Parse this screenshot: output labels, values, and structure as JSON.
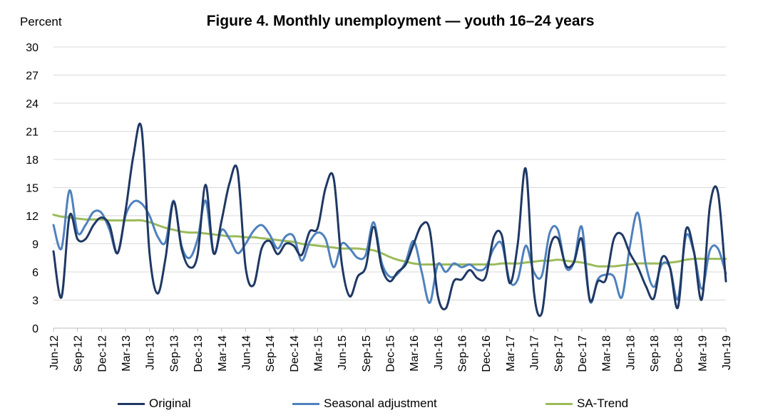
{
  "chart_data": {
    "type": "line",
    "title": "Figure 4. Monthly unemployment  — youth 16–24 years",
    "ylabel": "Percent",
    "ylim": [
      0,
      30
    ],
    "yticks": [
      0,
      3,
      6,
      9,
      12,
      15,
      18,
      21,
      24,
      27,
      30
    ],
    "grid": true,
    "legend_position": "bottom",
    "x_labels": [
      "Jun-12",
      "Sep-12",
      "Dec-12",
      "Mar-13",
      "Jun-13",
      "Sep-13",
      "Dec-13",
      "Mar-14",
      "Jun-14",
      "Sep-14",
      "Dec-14",
      "Mar-15",
      "Jun-15",
      "Sep-15",
      "Dec-15",
      "Mar-16",
      "Jun-16",
      "Sep-16",
      "Dec-16",
      "Mar-17",
      "Jun-17",
      "Sep-17",
      "Dec-17",
      "Mar-18",
      "Jun-18",
      "Sep-18",
      "Dec-18",
      "Mar-19",
      "Jun-19"
    ],
    "series": [
      {
        "name": "Original",
        "color": "#1f3864",
        "values": [
          8.2,
          3.3,
          12.0,
          9.5,
          9.5,
          11.0,
          11.8,
          11.0,
          8.0,
          12.5,
          18.5,
          21.3,
          8.0,
          3.7,
          7.5,
          13.5,
          8.5,
          6.5,
          7.8,
          15.3,
          8.0,
          11.5,
          15.5,
          16.8,
          6.5,
          4.6,
          8.5,
          9.3,
          7.9,
          9.0,
          8.8,
          7.8,
          10.3,
          10.7,
          15.0,
          16.0,
          7.0,
          3.4,
          5.5,
          6.5,
          10.8,
          6.5,
          5.0,
          6.0,
          6.8,
          9.0,
          11.0,
          10.5,
          3.5,
          2.1,
          5.0,
          5.2,
          6.2,
          5.3,
          5.5,
          9.7,
          9.9,
          4.8,
          9.0,
          17.0,
          4.0,
          1.6,
          8.5,
          9.6,
          6.7,
          7.0,
          9.5,
          3.0,
          5.0,
          5.2,
          9.5,
          10.0,
          8.0,
          6.5,
          4.5,
          3.2,
          7.5,
          6.5,
          2.2,
          10.5,
          8.2,
          3.1,
          13.0,
          14.5,
          5.0
        ]
      },
      {
        "name": "Seasonal adjustment",
        "color": "#4f81bd",
        "values": [
          11.0,
          8.5,
          14.7,
          10.2,
          11.0,
          12.4,
          12.3,
          10.5,
          8.0,
          12.0,
          13.5,
          13.3,
          12.0,
          9.8,
          9.2,
          13.6,
          8.8,
          7.5,
          9.5,
          13.6,
          8.0,
          10.5,
          9.5,
          8.0,
          9.0,
          10.4,
          11.0,
          10.0,
          8.5,
          9.8,
          9.8,
          7.2,
          9.2,
          10.2,
          9.5,
          6.5,
          9.0,
          8.5,
          7.5,
          7.8,
          11.3,
          7.0,
          5.5,
          5.8,
          7.1,
          9.3,
          6.0,
          2.7,
          6.8,
          6.0,
          6.9,
          6.5,
          6.8,
          6.2,
          6.5,
          8.5,
          9.0,
          5.0,
          5.2,
          8.8,
          6.0,
          5.6,
          10.2,
          10.5,
          6.5,
          7.0,
          10.8,
          2.9,
          5.2,
          5.7,
          5.5,
          3.3,
          8.7,
          12.3,
          6.8,
          4.4,
          6.8,
          6.5,
          3.1,
          9.8,
          8.1,
          4.2,
          8.3,
          8.5,
          5.8
        ]
      },
      {
        "name": "SA-Trend",
        "color": "#9bbb59",
        "values": [
          12.1,
          11.9,
          11.8,
          11.7,
          11.6,
          11.6,
          11.6,
          11.5,
          11.5,
          11.5,
          11.5,
          11.5,
          11.3,
          11.0,
          10.7,
          10.5,
          10.3,
          10.2,
          10.2,
          10.1,
          10.0,
          9.9,
          9.8,
          9.8,
          9.7,
          9.7,
          9.6,
          9.5,
          9.4,
          9.3,
          9.2,
          9.0,
          8.9,
          8.8,
          8.7,
          8.6,
          8.5,
          8.5,
          8.5,
          8.4,
          8.3,
          8.0,
          7.6,
          7.3,
          7.1,
          6.9,
          6.8,
          6.8,
          6.8,
          6.8,
          6.8,
          6.8,
          6.8,
          6.8,
          6.8,
          6.8,
          6.9,
          6.9,
          6.9,
          7.0,
          7.1,
          7.2,
          7.2,
          7.3,
          7.2,
          7.1,
          7.0,
          6.8,
          6.6,
          6.6,
          6.6,
          6.7,
          6.8,
          6.9,
          6.9,
          6.9,
          6.9,
          7.0,
          7.1,
          7.3,
          7.4,
          7.4,
          7.4,
          7.4,
          7.4
        ]
      }
    ]
  }
}
